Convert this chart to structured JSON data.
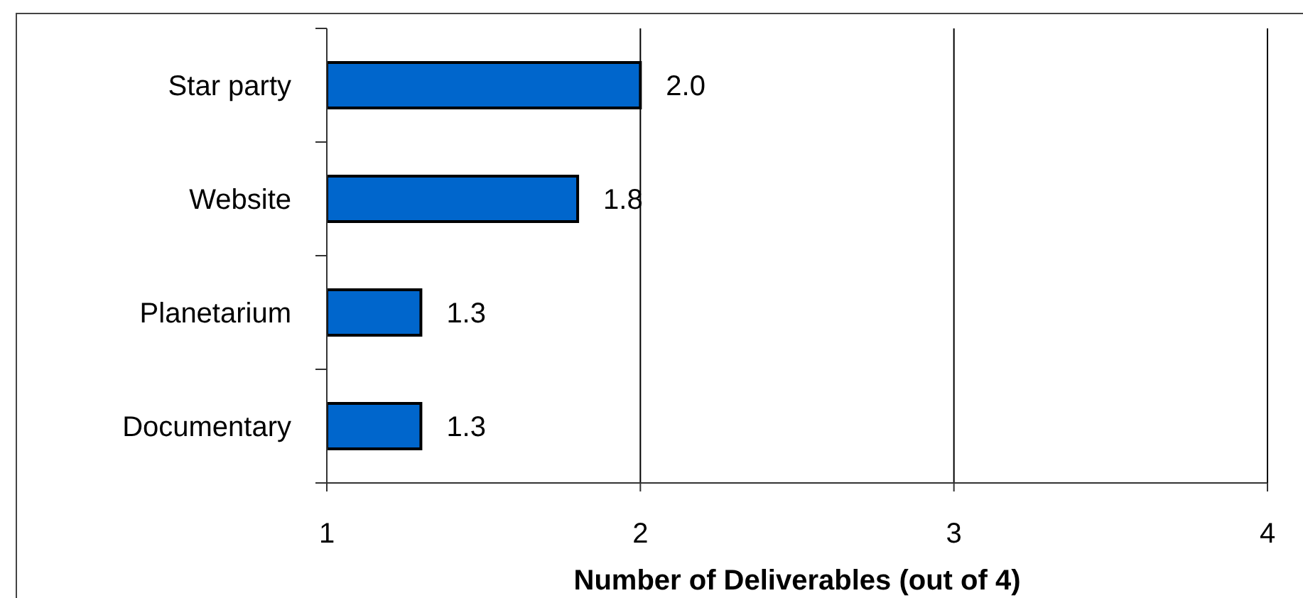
{
  "chart_data": {
    "type": "bar",
    "orientation": "horizontal",
    "categories": [
      "Star party",
      "Website",
      "Planetarium",
      "Documentary"
    ],
    "values": [
      2.0,
      1.8,
      1.3,
      1.3
    ],
    "value_labels": [
      "2.0",
      "1.8",
      "1.3",
      "1.3"
    ],
    "color": "#0066cc",
    "xlabel": "Number of Deliverables (out of 4)",
    "xlim": [
      1,
      4
    ],
    "xticks": [
      1,
      2,
      3,
      4
    ],
    "grid": "x"
  }
}
